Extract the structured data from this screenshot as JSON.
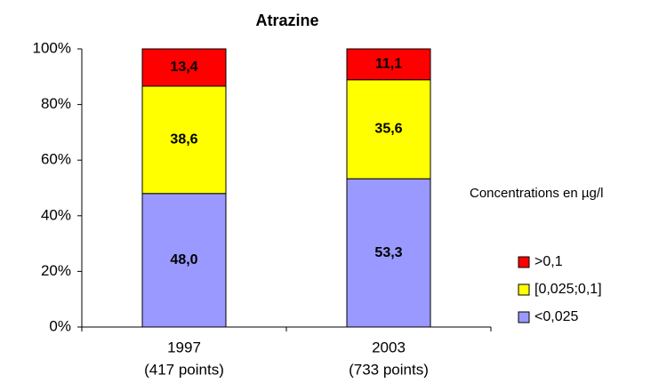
{
  "chart_data": {
    "type": "stacked_bar",
    "title": "Atrazine",
    "categories": [
      [
        "1997",
        "(417 points)"
      ],
      [
        "2003",
        "(733 points)"
      ]
    ],
    "series": [
      {
        "name": "<0,025",
        "color": "#9999ff",
        "values": [
          48.0,
          53.3
        ],
        "value_labels": [
          "48,0",
          "53,3"
        ]
      },
      {
        "name": "[0,025;0,1]",
        "color": "#ffff00",
        "values": [
          38.6,
          35.6
        ],
        "value_labels": [
          "38,6",
          "35,6"
        ]
      },
      {
        "name": ">0,1",
        "color": "#ff0000",
        "values": [
          13.4,
          11.1
        ],
        "value_labels": [
          "13,4",
          "11,1"
        ]
      }
    ],
    "legend_title": "Concentrations en µg/l",
    "ylim": [
      0,
      100
    ],
    "yticks": [
      {
        "value": 0,
        "label": "0%"
      },
      {
        "value": 20,
        "label": "20%"
      },
      {
        "value": 40,
        "label": "40%"
      },
      {
        "value": 60,
        "label": "60%"
      },
      {
        "value": 80,
        "label": "80%"
      },
      {
        "value": 100,
        "label": "100%"
      }
    ],
    "grid": false
  }
}
